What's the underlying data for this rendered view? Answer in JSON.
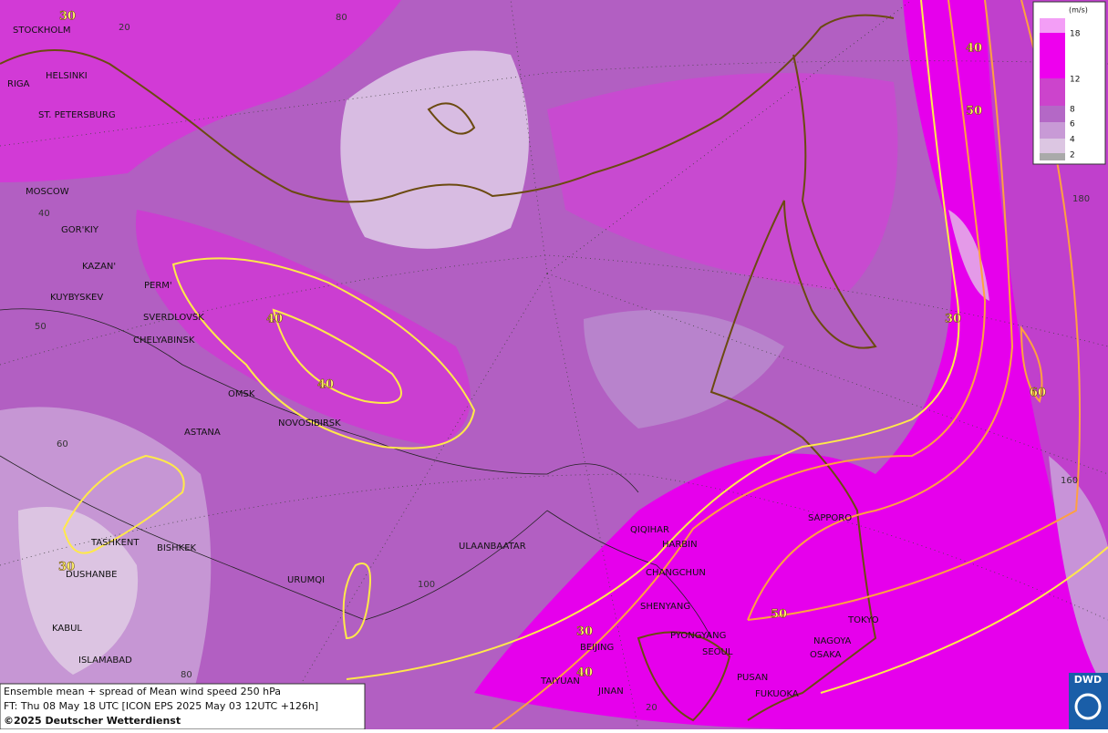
{
  "cities": [
    "STOCKHOLM",
    "HELSINKI",
    "RIGA",
    "ST. PETERSBURG",
    "MOSCOW",
    "GOR'KIY",
    "KAZAN'",
    "KUYBYSKEV",
    "PERM'",
    "SVERDLOVSK",
    "CHELYABINSK",
    "OMSK",
    "ASTANA",
    "NOVOSIBIRSK",
    "TASHKENT",
    "BISHKEK",
    "DUSHANBE",
    "KABUL",
    "ISLAMABAD",
    "URUMQI",
    "ULAANBAATAR",
    "QIQIHAR",
    "HARBIN",
    "CHANGCHUN",
    "SHENYANG",
    "PYONGYANG",
    "SEOUL",
    "BEIJING",
    "TAIYUAN",
    "JINAN",
    "PUSAN",
    "FUKUOKA",
    "SAPPORO",
    "TOKYO",
    "NAGOYA",
    "OSAKA"
  ],
  "grid_labels": [
    20,
    80,
    40,
    50,
    60,
    80,
    100,
    180,
    160,
    20
  ],
  "contour_labels": [
    30,
    40,
    40,
    30,
    30,
    40,
    50,
    30,
    40,
    50,
    60
  ],
  "legend": {
    "unit": "(m/s)",
    "ticks": [
      18,
      12,
      8,
      6,
      4,
      2
    ]
  },
  "footer": {
    "line1": "Ensemble mean + spread of Mean wind speed 250 hPa",
    "line2": "FT: Thu 08 May 18 UTC [ICON EPS 2025 May 03 12UTC +126h]",
    "line3": "©2025 Deutscher Wetterdienst"
  },
  "logo": "DWD"
}
